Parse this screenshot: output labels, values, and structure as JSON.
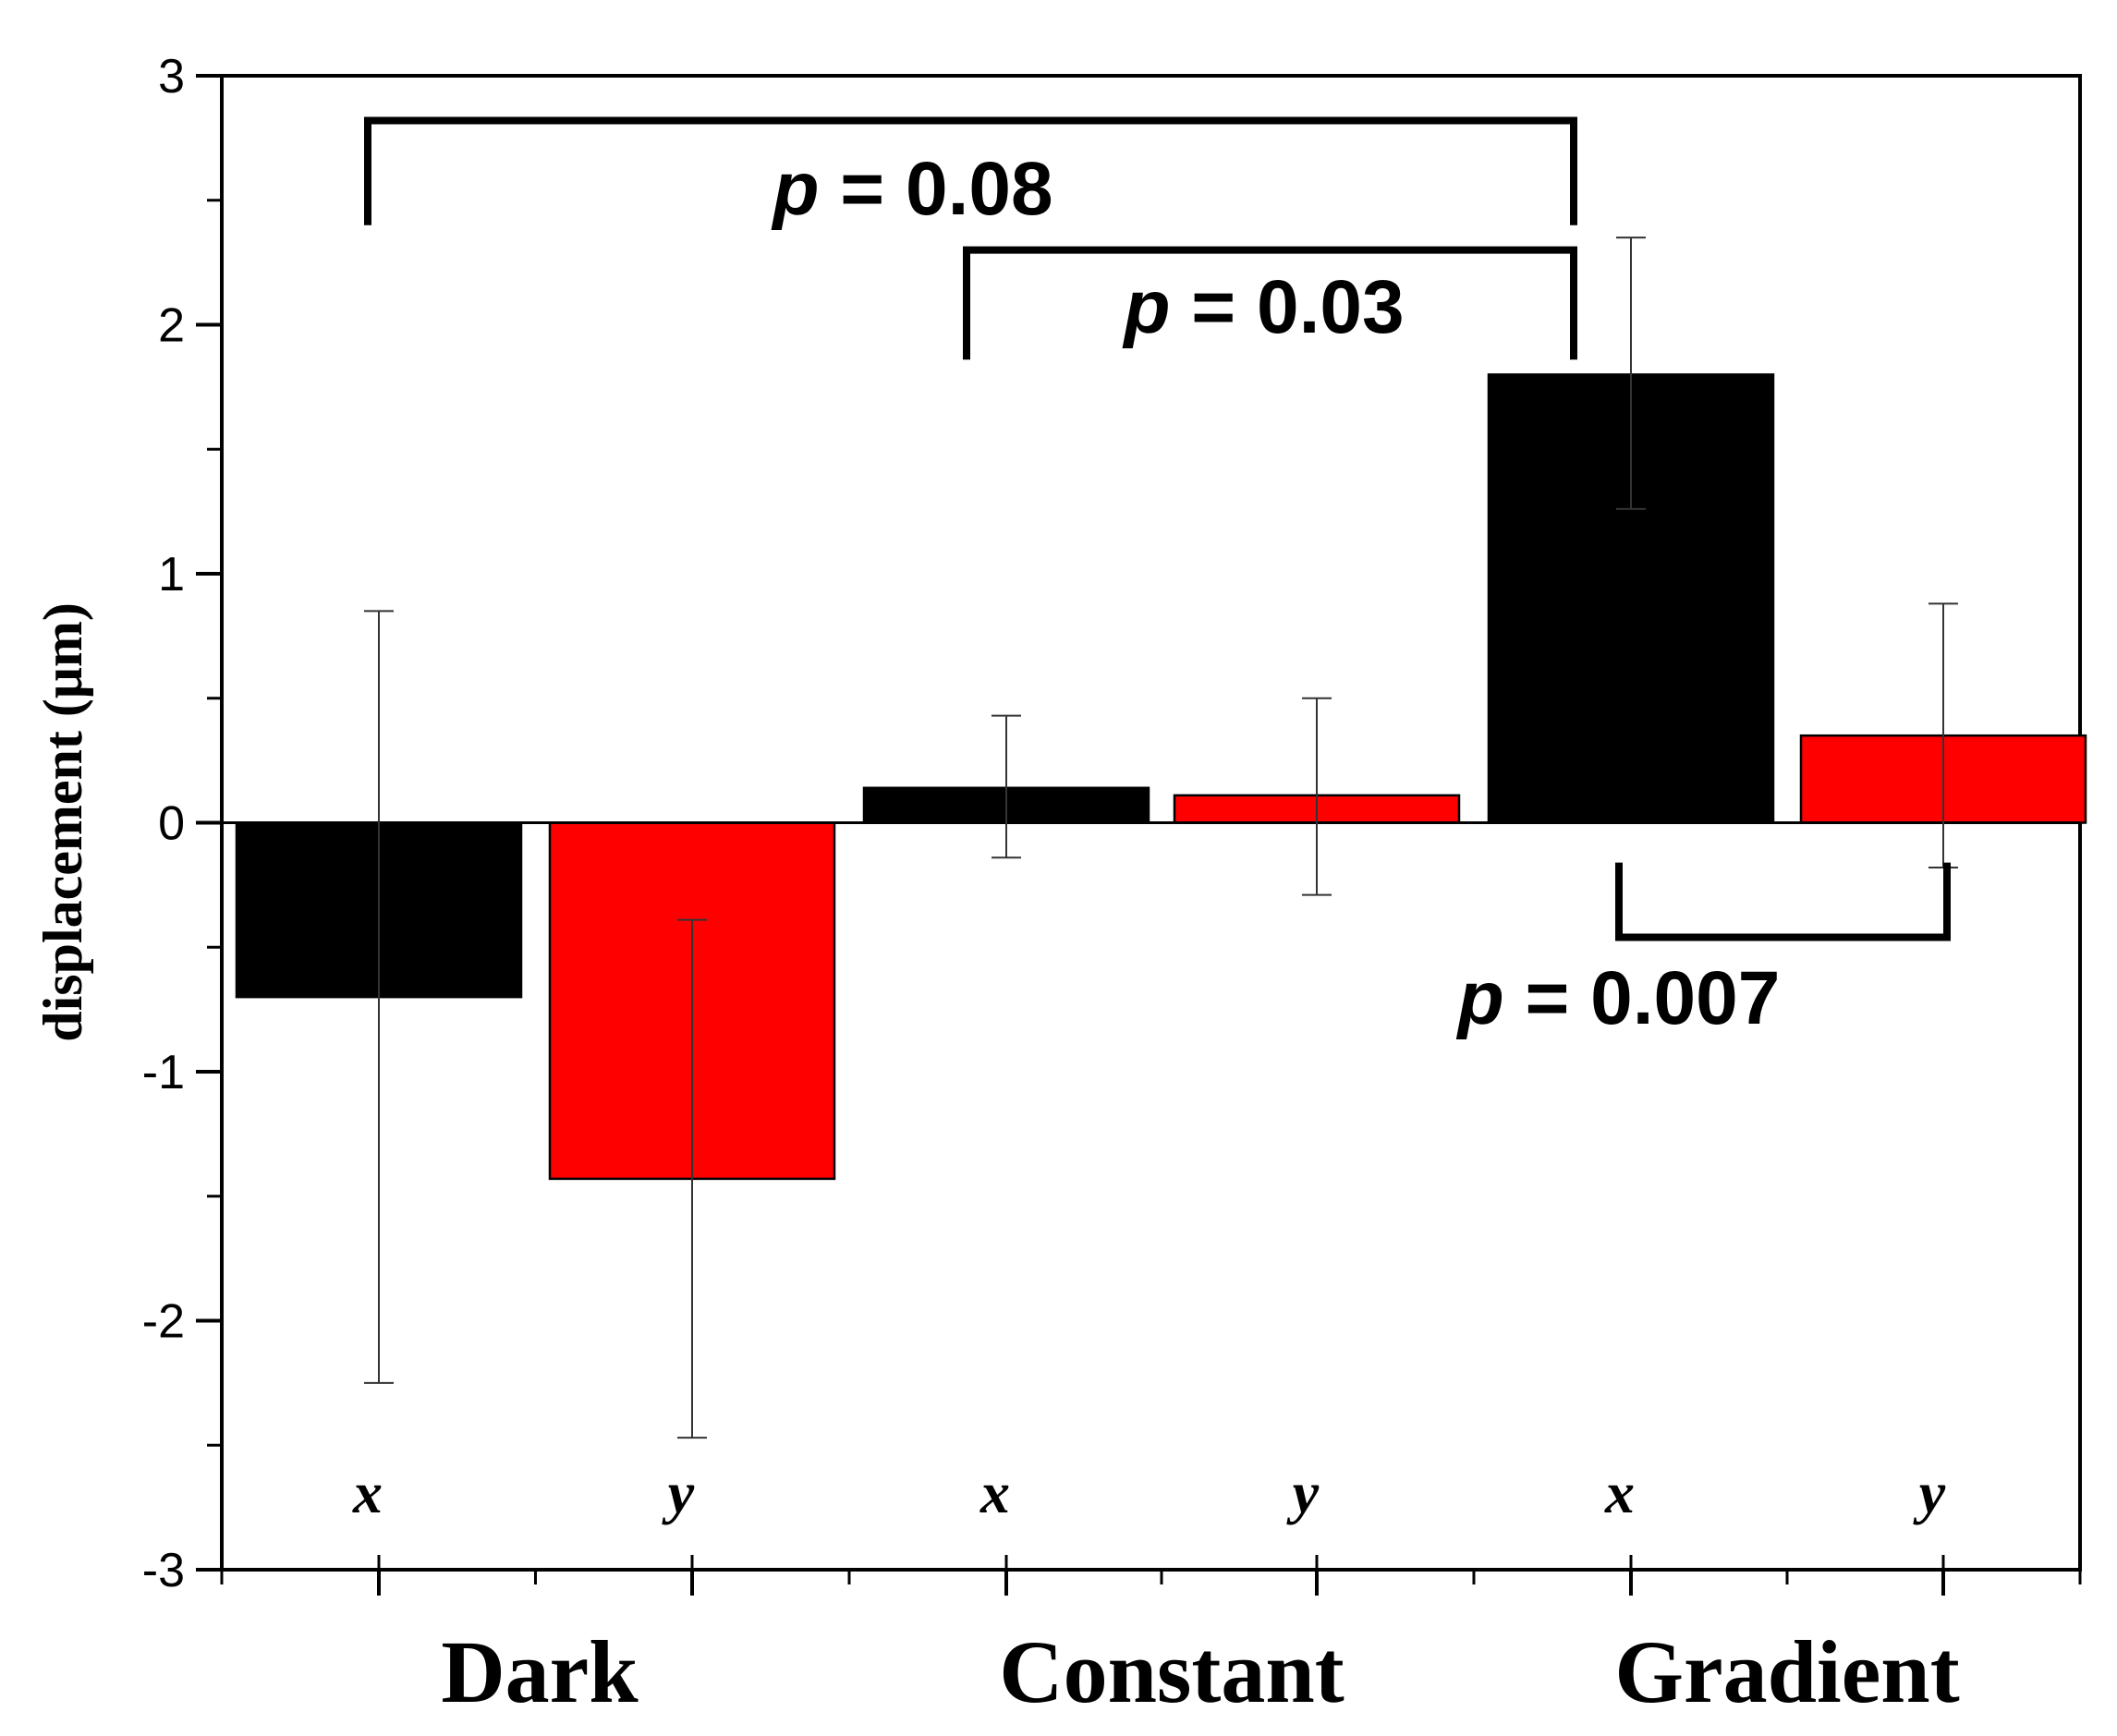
{
  "chart_data": {
    "type": "bar",
    "title": "",
    "xlabel": "",
    "ylabel": "displacement (μm)",
    "ylim": [
      -3,
      3
    ],
    "yticks": [
      "3",
      "2",
      "1",
      "0",
      "-1",
      "-2",
      "-3"
    ],
    "groups": [
      "Dark",
      "Constant",
      "Gradient"
    ],
    "bars": [
      {
        "group": "Dark",
        "axis": "x",
        "value": -0.7,
        "error_low": -2.25,
        "error_high": 0.85,
        "color": "#000000"
      },
      {
        "group": "Dark",
        "axis": "y",
        "value": -1.43,
        "error_low": -2.47,
        "error_high": -0.39,
        "color": "#ff0000"
      },
      {
        "group": "Constant",
        "axis": "x",
        "value": 0.14,
        "error_low": -0.14,
        "error_high": 0.43,
        "color": "#000000"
      },
      {
        "group": "Constant",
        "axis": "y",
        "value": 0.11,
        "error_low": -0.29,
        "error_high": 0.5,
        "color": "#ff0000"
      },
      {
        "group": "Gradient",
        "axis": "x",
        "value": 1.8,
        "error_low": 1.26,
        "error_high": 2.35,
        "color": "#000000"
      },
      {
        "group": "Gradient",
        "axis": "y",
        "value": 0.35,
        "error_low": -0.18,
        "error_high": 0.88,
        "color": "#ff0000"
      }
    ],
    "significance": [
      {
        "from_bar": 0,
        "to_bar": 4,
        "p_symbol": "p",
        "p_text": " = 0.08",
        "level": 2.82,
        "leg_end": 2.4,
        "direction": "above"
      },
      {
        "from_bar": 2,
        "to_bar": 4,
        "p_symbol": "p",
        "p_text": " = 0.03",
        "level": 2.3,
        "leg_end": 1.86,
        "direction": "above"
      },
      {
        "from_bar": 4,
        "to_bar": 5,
        "p_symbol": "p",
        "p_text": " = 0.007",
        "level": -0.46,
        "leg_end": -0.16,
        "direction": "below"
      }
    ],
    "grid": false,
    "legend": "none"
  }
}
